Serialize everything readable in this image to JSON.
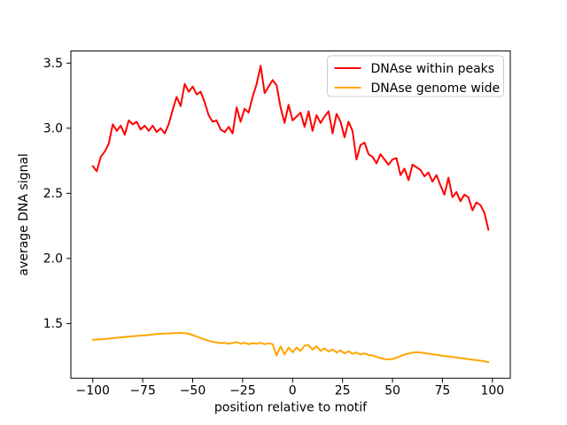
{
  "chart_data": {
    "type": "line",
    "title": "",
    "xlabel": "position relative to motif",
    "ylabel": "average DNA signal",
    "xlim": [
      -110.95,
      108.95
    ],
    "ylim": [
      1.08,
      3.593
    ],
    "xticks": [
      -100,
      -75,
      -50,
      -25,
      0,
      25,
      50,
      75,
      100
    ],
    "xtick_labels": [
      "−100",
      "−75",
      "−50",
      "−25",
      "0",
      "25",
      "50",
      "75",
      "100"
    ],
    "yticks": [
      1.5,
      2.0,
      2.5,
      3.0,
      3.5
    ],
    "ytick_labels": [
      "1.5",
      "2.0",
      "2.5",
      "3.0",
      "3.5"
    ],
    "grid": false,
    "legend": {
      "position": "upper right",
      "border_color": "#cccccc",
      "background": "#ffffff"
    },
    "axis_color": "#000000",
    "x": [
      -100,
      -98,
      -96,
      -94,
      -92,
      -90,
      -88,
      -86,
      -84,
      -82,
      -80,
      -78,
      -76,
      -74,
      -72,
      -70,
      -68,
      -66,
      -64,
      -62,
      -60,
      -58,
      -56,
      -54,
      -52,
      -50,
      -48,
      -46,
      -44,
      -42,
      -40,
      -38,
      -36,
      -34,
      -32,
      -30,
      -28,
      -26,
      -24,
      -22,
      -20,
      -18,
      -16,
      -14,
      -12,
      -10,
      -8,
      -6,
      -4,
      -2,
      0,
      2,
      4,
      6,
      8,
      10,
      12,
      14,
      16,
      18,
      20,
      22,
      24,
      26,
      28,
      30,
      32,
      34,
      36,
      38,
      40,
      42,
      44,
      46,
      48,
      50,
      52,
      54,
      56,
      58,
      60,
      62,
      64,
      66,
      68,
      70,
      72,
      74,
      76,
      78,
      80,
      82,
      84,
      86,
      88,
      90,
      92,
      94,
      96,
      98
    ],
    "series": [
      {
        "name": "DNAse within peaks",
        "color": "#ff0000",
        "values": [
          2.71,
          2.67,
          2.78,
          2.82,
          2.88,
          3.03,
          2.98,
          3.02,
          2.95,
          3.06,
          3.03,
          3.05,
          2.99,
          3.02,
          2.98,
          3.02,
          2.97,
          3.0,
          2.96,
          3.03,
          3.14,
          3.24,
          3.17,
          3.34,
          3.28,
          3.32,
          3.26,
          3.28,
          3.2,
          3.1,
          3.05,
          3.06,
          2.99,
          2.97,
          3.01,
          2.96,
          3.16,
          3.05,
          3.15,
          3.12,
          3.24,
          3.34,
          3.48,
          3.27,
          3.32,
          3.37,
          3.33,
          3.16,
          3.04,
          3.18,
          3.06,
          3.09,
          3.12,
          3.01,
          3.13,
          2.98,
          3.1,
          3.04,
          3.09,
          3.13,
          2.96,
          3.11,
          3.05,
          2.93,
          3.05,
          2.98,
          2.76,
          2.87,
          2.89,
          2.8,
          2.78,
          2.73,
          2.8,
          2.76,
          2.72,
          2.76,
          2.77,
          2.64,
          2.69,
          2.6,
          2.72,
          2.7,
          2.68,
          2.63,
          2.66,
          2.59,
          2.64,
          2.56,
          2.49,
          2.62,
          2.47,
          2.51,
          2.44,
          2.49,
          2.47,
          2.37,
          2.43,
          2.41,
          2.35,
          2.22
        ]
      },
      {
        "name": "DNAse genome wide",
        "color": "#ffa500",
        "values": [
          1.375,
          1.377,
          1.379,
          1.381,
          1.384,
          1.388,
          1.391,
          1.394,
          1.397,
          1.4,
          1.402,
          1.405,
          1.408,
          1.41,
          1.413,
          1.416,
          1.419,
          1.421,
          1.423,
          1.424,
          1.426,
          1.427,
          1.429,
          1.427,
          1.421,
          1.411,
          1.4,
          1.389,
          1.378,
          1.368,
          1.36,
          1.355,
          1.35,
          1.352,
          1.346,
          1.351,
          1.358,
          1.346,
          1.352,
          1.341,
          1.35,
          1.345,
          1.352,
          1.341,
          1.348,
          1.342,
          1.255,
          1.325,
          1.262,
          1.315,
          1.28,
          1.315,
          1.29,
          1.33,
          1.335,
          1.3,
          1.325,
          1.29,
          1.31,
          1.285,
          1.3,
          1.278,
          1.295,
          1.27,
          1.288,
          1.268,
          1.278,
          1.262,
          1.272,
          1.258,
          1.255,
          1.245,
          1.235,
          1.228,
          1.224,
          1.228,
          1.238,
          1.25,
          1.262,
          1.27,
          1.276,
          1.28,
          1.278,
          1.274,
          1.269,
          1.264,
          1.26,
          1.255,
          1.251,
          1.247,
          1.243,
          1.239,
          1.235,
          1.231,
          1.227,
          1.223,
          1.219,
          1.215,
          1.21,
          1.203
        ]
      }
    ]
  }
}
